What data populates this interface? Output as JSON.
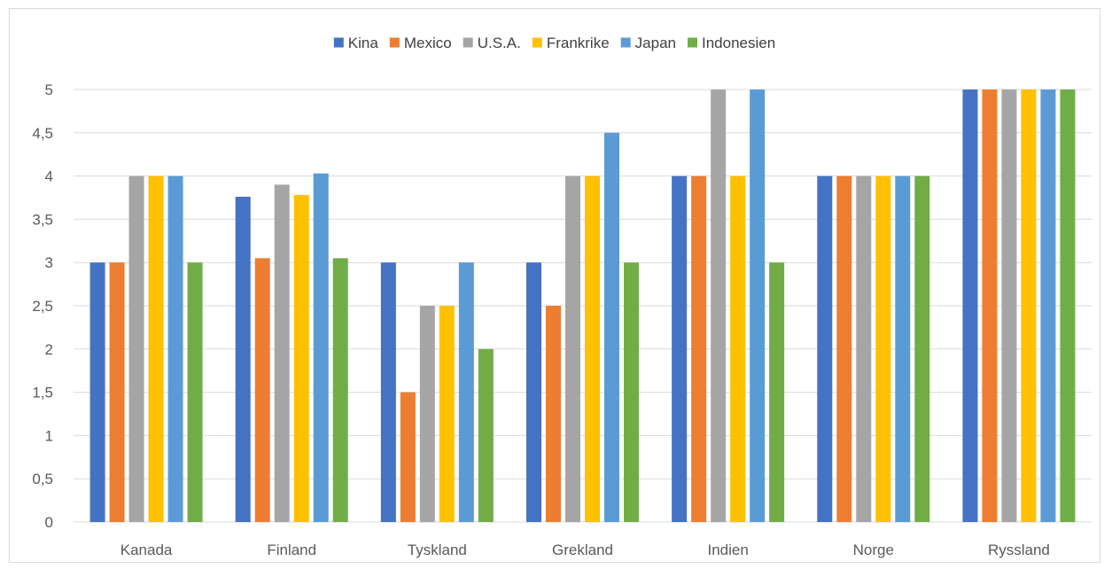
{
  "chart_data": {
    "type": "bar",
    "title": "",
    "xlabel": "",
    "ylabel": "",
    "categories": [
      "Kanada",
      "Finland",
      "Tyskland",
      "Grekland",
      "Indien",
      "Norge",
      "Ryssland"
    ],
    "ylim": [
      0,
      5
    ],
    "yticks": [
      "0",
      "0,5",
      "1",
      "1,5",
      "2",
      "2,5",
      "3",
      "3,5",
      "4",
      "4,5",
      "5"
    ],
    "grid": true,
    "legend_position": "top",
    "series": [
      {
        "name": "Kina",
        "color": "#4472c4",
        "values": [
          3,
          3.76,
          3,
          3,
          4,
          4,
          5
        ]
      },
      {
        "name": "Mexico",
        "color": "#ed7d31",
        "values": [
          3,
          3.05,
          1.5,
          2.5,
          4,
          4,
          5
        ]
      },
      {
        "name": "U.S.A.",
        "color": "#a5a5a5",
        "values": [
          4,
          3.9,
          2.5,
          4,
          5,
          4,
          5
        ]
      },
      {
        "name": "Frankrike",
        "color": "#ffc000",
        "values": [
          4,
          3.78,
          2.5,
          4,
          4,
          4,
          5
        ]
      },
      {
        "name": "Japan",
        "color": "#5b9bd5",
        "values": [
          4,
          4.03,
          3,
          4.5,
          5,
          4,
          5
        ]
      },
      {
        "name": "Indonesien",
        "color": "#70ad47",
        "values": [
          3,
          3.05,
          2,
          3,
          3,
          4,
          5
        ]
      }
    ]
  }
}
